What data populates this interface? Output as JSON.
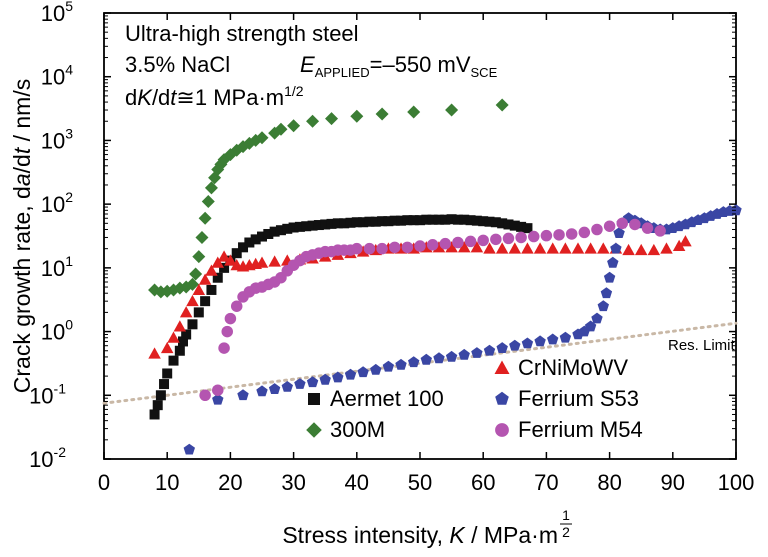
{
  "chart_data": {
    "type": "scatter",
    "yscale": "log",
    "xlabel": {
      "prefix": "Stress intensity, ",
      "var": "K",
      "suffix": " / MPa·m",
      "exp_num": "1",
      "exp_den": "2"
    },
    "ylabel": {
      "prefix": "Crack growth rate, d",
      "var1": "a",
      "mid": "/d",
      "var2": "t",
      "suffix": " / nm/s"
    },
    "xlim": [
      0,
      100
    ],
    "ylim": [
      0.01,
      100000
    ],
    "x_ticks": [
      "0",
      "10",
      "20",
      "30",
      "40",
      "50",
      "60",
      "70",
      "80",
      "90",
      "100"
    ],
    "y_ticks": [
      {
        "base": "10",
        "exp": "-2",
        "value": 0.01
      },
      {
        "base": "10",
        "exp": "-1",
        "value": 0.1
      },
      {
        "base": "10",
        "exp": "0",
        "value": 1
      },
      {
        "base": "10",
        "exp": "1",
        "value": 10
      },
      {
        "base": "10",
        "exp": "2",
        "value": 100
      },
      {
        "base": "10",
        "exp": "3",
        "value": 1000
      },
      {
        "base": "10",
        "exp": "4",
        "value": 10000
      },
      {
        "base": "10",
        "exp": "5",
        "value": 100000
      }
    ],
    "annotations": {
      "line1": "Ultra-high strength steel",
      "line2": "3.5% NaCl",
      "applied_E": "E",
      "applied_sub": "APPLIED",
      "applied_value": "=–550 mV",
      "applied_value_sub": "SCE",
      "rate_d1": "d",
      "rate_K": "K",
      "rate_mid": "/d",
      "rate_t": "t",
      "rate_rest": "≅1 MPa·m",
      "rate_exp": "1/2",
      "res_limit": "Res. Limit"
    },
    "reference_line": {
      "name": "Res. Limit",
      "points": [
        [
          0,
          0.075
        ],
        [
          100,
          1.35
        ]
      ],
      "color": "#c9b8a6"
    },
    "series": [
      {
        "name": "Aermet 100",
        "marker": "square",
        "color": "#111111",
        "points": [
          [
            8,
            0.05
          ],
          [
            8.5,
            0.07
          ],
          [
            9,
            0.1
          ],
          [
            9.5,
            0.15
          ],
          [
            10,
            0.22
          ],
          [
            11,
            0.35
          ],
          [
            12,
            0.5
          ],
          [
            12.5,
            0.7
          ],
          [
            13,
            0.9
          ],
          [
            14,
            1.3
          ],
          [
            15,
            2
          ],
          [
            16,
            3
          ],
          [
            17,
            4.5
          ],
          [
            18,
            7
          ],
          [
            19,
            10
          ],
          [
            20,
            13
          ],
          [
            21,
            17
          ],
          [
            22,
            21
          ],
          [
            23,
            25
          ],
          [
            24,
            28
          ],
          [
            25,
            31
          ],
          [
            26,
            34
          ],
          [
            27,
            37
          ],
          [
            28,
            39
          ],
          [
            29,
            41
          ],
          [
            30,
            43
          ],
          [
            31,
            44
          ],
          [
            32,
            45
          ],
          [
            33,
            46
          ],
          [
            34,
            47
          ],
          [
            35,
            48
          ],
          [
            36,
            49
          ],
          [
            37,
            50
          ],
          [
            38,
            50
          ],
          [
            39,
            51
          ],
          [
            40,
            52
          ],
          [
            41,
            52
          ],
          [
            42,
            53
          ],
          [
            43,
            53
          ],
          [
            44,
            54
          ],
          [
            45,
            54
          ],
          [
            46,
            55
          ],
          [
            47,
            55
          ],
          [
            48,
            56
          ],
          [
            49,
            56
          ],
          [
            50,
            56
          ],
          [
            51,
            57
          ],
          [
            52,
            57
          ],
          [
            53,
            57
          ],
          [
            54,
            57
          ],
          [
            55,
            58
          ],
          [
            56,
            57
          ],
          [
            57,
            57
          ],
          [
            58,
            56
          ],
          [
            59,
            55
          ],
          [
            60,
            54
          ],
          [
            61,
            53
          ],
          [
            62,
            52
          ],
          [
            63,
            50
          ],
          [
            64,
            48
          ],
          [
            65,
            46
          ],
          [
            66,
            44
          ],
          [
            67,
            42
          ]
        ]
      },
      {
        "name": "300M",
        "marker": "diamond",
        "color": "#3b7d34",
        "points": [
          [
            8,
            4.5
          ],
          [
            9,
            4.2
          ],
          [
            10,
            4.3
          ],
          [
            11,
            4.5
          ],
          [
            12,
            4.8
          ],
          [
            13,
            5
          ],
          [
            14,
            5.5
          ],
          [
            14.5,
            8
          ],
          [
            15,
            15
          ],
          [
            15.5,
            30
          ],
          [
            16,
            60
          ],
          [
            16.5,
            110
          ],
          [
            17,
            180
          ],
          [
            17.5,
            260
          ],
          [
            18,
            350
          ],
          [
            18.5,
            420
          ],
          [
            19,
            500
          ],
          [
            20,
            600
          ],
          [
            21,
            700
          ],
          [
            22,
            800
          ],
          [
            23,
            900
          ],
          [
            24,
            1000
          ],
          [
            25,
            1100
          ],
          [
            27,
            1300
          ],
          [
            28,
            1500
          ],
          [
            30,
            1700
          ],
          [
            33,
            2000
          ],
          [
            36,
            2200
          ],
          [
            40,
            2400
          ],
          [
            44,
            2600
          ],
          [
            49,
            2800
          ],
          [
            55,
            3000
          ],
          [
            63,
            3600
          ]
        ]
      },
      {
        "name": "CrNiMoWV",
        "marker": "triangle",
        "color": "#e02020",
        "points": [
          [
            8,
            0.45
          ],
          [
            10,
            0.55
          ],
          [
            11,
            0.8
          ],
          [
            12,
            1.2
          ],
          [
            13,
            2
          ],
          [
            14,
            3
          ],
          [
            15,
            4.5
          ],
          [
            16,
            6.5
          ],
          [
            17,
            9
          ],
          [
            18,
            12
          ],
          [
            19,
            15
          ],
          [
            20,
            13
          ],
          [
            21,
            11
          ],
          [
            22,
            10.5
          ],
          [
            23,
            11
          ],
          [
            24,
            11.5
          ],
          [
            25,
            12
          ],
          [
            27,
            12.5
          ],
          [
            29,
            13
          ],
          [
            31,
            13.5
          ],
          [
            33,
            14
          ],
          [
            35,
            15
          ],
          [
            37,
            16
          ],
          [
            39,
            17
          ],
          [
            41,
            18
          ],
          [
            43,
            19
          ],
          [
            45,
            20
          ],
          [
            47,
            20
          ],
          [
            49,
            20
          ],
          [
            51,
            21
          ],
          [
            53,
            21
          ],
          [
            55,
            21
          ],
          [
            57,
            21
          ],
          [
            59,
            21
          ],
          [
            61,
            20
          ],
          [
            63,
            20
          ],
          [
            65,
            20
          ],
          [
            67,
            20
          ],
          [
            69,
            20
          ],
          [
            71,
            20
          ],
          [
            73,
            20
          ],
          [
            75,
            20
          ],
          [
            77,
            20
          ],
          [
            79,
            20
          ],
          [
            81,
            20
          ],
          [
            83,
            19
          ],
          [
            85,
            19
          ],
          [
            87,
            19
          ],
          [
            89,
            20
          ],
          [
            91,
            22
          ],
          [
            92,
            26
          ]
        ]
      },
      {
        "name": "Ferrium S53",
        "marker": "pentagon",
        "color": "#3a46a4",
        "points": [
          [
            13.5,
            0.014
          ],
          [
            18,
            0.085
          ],
          [
            22,
            0.1
          ],
          [
            25,
            0.115
          ],
          [
            27,
            0.125
          ],
          [
            29,
            0.135
          ],
          [
            31,
            0.15
          ],
          [
            33,
            0.16
          ],
          [
            35,
            0.175
          ],
          [
            37,
            0.19
          ],
          [
            39,
            0.21
          ],
          [
            41,
            0.23
          ],
          [
            43,
            0.25
          ],
          [
            45,
            0.28
          ],
          [
            47,
            0.3
          ],
          [
            49,
            0.33
          ],
          [
            51,
            0.36
          ],
          [
            53,
            0.38
          ],
          [
            55,
            0.4
          ],
          [
            57,
            0.43
          ],
          [
            59,
            0.46
          ],
          [
            61,
            0.5
          ],
          [
            63,
            0.55
          ],
          [
            65,
            0.6
          ],
          [
            67,
            0.65
          ],
          [
            69,
            0.7
          ],
          [
            71,
            0.75
          ],
          [
            73,
            0.8
          ],
          [
            75,
            0.9
          ],
          [
            76,
            1
          ],
          [
            77,
            1.2
          ],
          [
            78,
            1.6
          ],
          [
            79,
            2.5
          ],
          [
            79.5,
            4
          ],
          [
            80,
            7
          ],
          [
            80.5,
            12
          ],
          [
            81,
            20
          ],
          [
            81.5,
            35
          ],
          [
            82,
            50
          ],
          [
            83,
            60
          ],
          [
            84,
            55
          ],
          [
            85,
            50
          ],
          [
            86,
            45
          ],
          [
            87,
            42
          ],
          [
            88,
            40
          ],
          [
            89,
            40
          ],
          [
            90,
            42
          ],
          [
            91,
            45
          ],
          [
            92,
            48
          ],
          [
            93,
            52
          ],
          [
            94,
            56
          ],
          [
            95,
            60
          ],
          [
            96,
            65
          ],
          [
            97,
            70
          ],
          [
            98,
            75
          ],
          [
            99,
            78
          ],
          [
            100,
            80
          ]
        ]
      },
      {
        "name": "Ferrium M54",
        "marker": "circle",
        "color": "#b455b0",
        "points": [
          [
            16,
            0.1
          ],
          [
            18,
            0.12
          ],
          [
            19,
            0.55
          ],
          [
            19.5,
            1
          ],
          [
            20,
            1.6
          ],
          [
            21,
            2.5
          ],
          [
            22,
            3.5
          ],
          [
            23,
            4.2
          ],
          [
            24,
            4.8
          ],
          [
            25,
            5
          ],
          [
            26,
            5.5
          ],
          [
            27,
            6
          ],
          [
            28,
            7
          ],
          [
            29,
            9
          ],
          [
            30,
            11
          ],
          [
            31,
            13
          ],
          [
            32,
            15
          ],
          [
            33,
            16
          ],
          [
            34,
            17
          ],
          [
            35,
            18
          ],
          [
            36,
            18
          ],
          [
            37,
            19
          ],
          [
            38,
            19
          ],
          [
            39,
            19
          ],
          [
            40,
            20
          ],
          [
            42,
            20
          ],
          [
            44,
            20
          ],
          [
            46,
            21
          ],
          [
            48,
            21
          ],
          [
            50,
            22
          ],
          [
            52,
            23
          ],
          [
            54,
            24
          ],
          [
            56,
            25
          ],
          [
            58,
            26
          ],
          [
            60,
            27
          ],
          [
            62,
            28
          ],
          [
            64,
            29
          ],
          [
            66,
            30
          ],
          [
            68,
            31
          ],
          [
            70,
            32
          ],
          [
            72,
            33
          ],
          [
            74,
            34
          ],
          [
            76,
            36
          ],
          [
            78,
            40
          ],
          [
            80,
            45
          ],
          [
            82,
            50
          ],
          [
            84,
            48
          ],
          [
            86,
            42
          ],
          [
            88,
            38
          ]
        ]
      }
    ],
    "legend": [
      {
        "name": "CrNiMoWV",
        "marker": "triangle",
        "color": "#e02020"
      },
      {
        "name": "Aermet 100",
        "marker": "square",
        "color": "#111111"
      },
      {
        "name": "Ferrium S53",
        "marker": "pentagon",
        "color": "#3a46a4"
      },
      {
        "name": "300M",
        "marker": "diamond",
        "color": "#3b7d34"
      },
      {
        "name": "Ferrium M54",
        "marker": "circle",
        "color": "#b455b0"
      }
    ]
  }
}
